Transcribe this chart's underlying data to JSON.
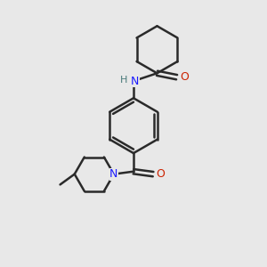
{
  "bg_color": "#e8e8e8",
  "bond_color": "#2a2a2a",
  "N_color": "#1a1aff",
  "O_color": "#cc2200",
  "H_color": "#4a7a7a",
  "line_width": 1.8,
  "figsize": [
    3.0,
    3.0
  ],
  "dpi": 100,
  "xlim": [
    0,
    10
  ],
  "ylim": [
    0,
    10
  ]
}
